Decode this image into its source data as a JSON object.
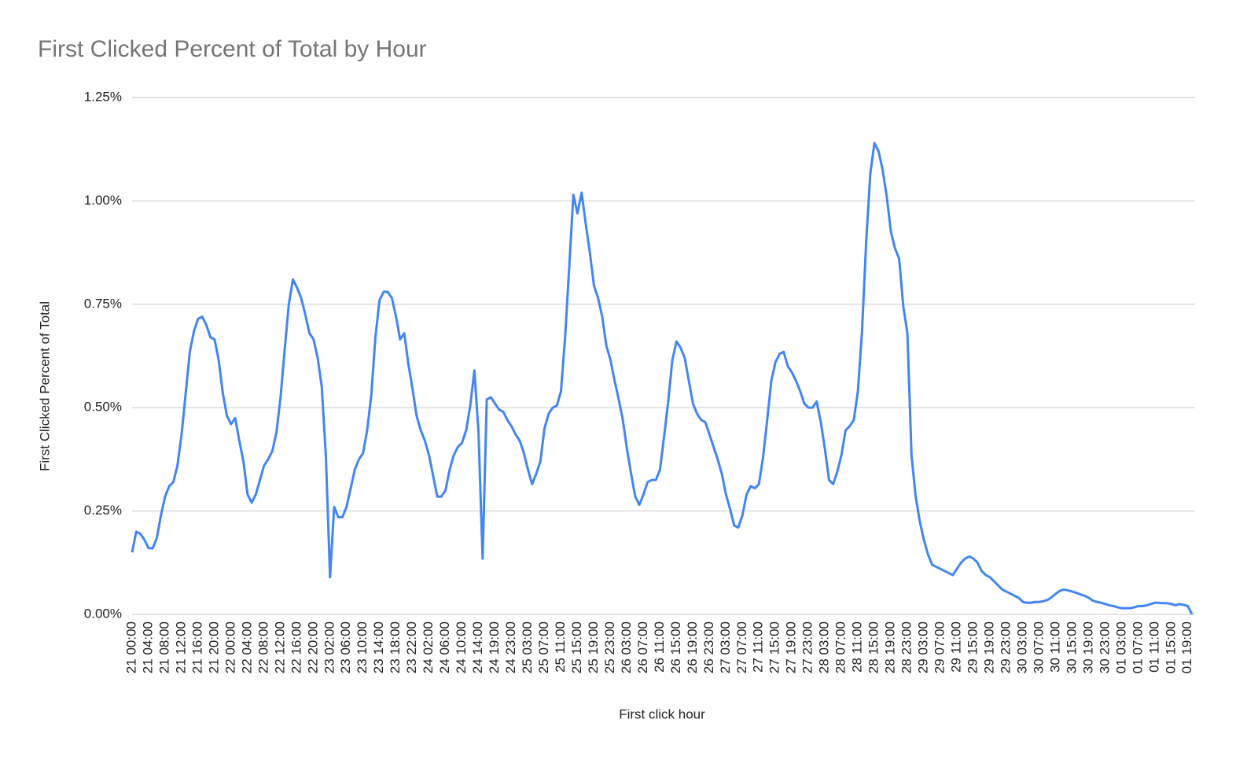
{
  "chart_data": {
    "type": "line",
    "title": "First Clicked Percent of Total by Hour",
    "x_label": "First click hour",
    "y_label": "First Clicked Percent of Total",
    "color": "#4285f4",
    "grid": true,
    "ylim": [
      0,
      1.25
    ],
    "yticks": [
      {
        "value": 0,
        "label": "0.00%"
      },
      {
        "value": 0.25,
        "label": "0.25%"
      },
      {
        "value": 0.5,
        "label": "0.50%"
      },
      {
        "value": 0.75,
        "label": "0.75%"
      },
      {
        "value": 1,
        "label": "1.00%"
      },
      {
        "value": 1.25,
        "label": "1.25%"
      }
    ],
    "categories": [
      "21 00:00",
      null,
      null,
      null,
      "21 04:00",
      null,
      null,
      null,
      "21 08:00",
      null,
      null,
      null,
      "21 12:00",
      null,
      null,
      null,
      "21 16:00",
      null,
      null,
      null,
      "21 20:00",
      null,
      null,
      null,
      "22 00:00",
      null,
      null,
      null,
      "22 04:00",
      null,
      null,
      null,
      "22 08:00",
      null,
      null,
      null,
      "22 12:00",
      null,
      null,
      null,
      "22 16:00",
      null,
      null,
      null,
      "22 20:00",
      null,
      null,
      null,
      "23 02:00",
      null,
      null,
      null,
      "23 06:00",
      null,
      null,
      null,
      "23 10:00",
      null,
      null,
      null,
      "23 14:00",
      null,
      null,
      null,
      "23 18:00",
      null,
      null,
      null,
      "23 22:00",
      null,
      null,
      null,
      "24 02:00",
      null,
      null,
      null,
      "24 06:00",
      null,
      null,
      null,
      "24 10:00",
      null,
      null,
      null,
      "24 14:00",
      null,
      null,
      null,
      "24 19:00",
      null,
      null,
      null,
      "24 23:00",
      null,
      null,
      null,
      "25 03:00",
      null,
      null,
      null,
      "25 07:00",
      null,
      null,
      null,
      "25 11:00",
      null,
      null,
      null,
      "25 15:00",
      null,
      null,
      null,
      "25 19:00",
      null,
      null,
      null,
      "25 23:00",
      null,
      null,
      null,
      "26 03:00",
      null,
      null,
      null,
      "26 07:00",
      null,
      null,
      null,
      "26 11:00",
      null,
      null,
      null,
      "26 15:00",
      null,
      null,
      null,
      "26 19:00",
      null,
      null,
      null,
      "26 23:00",
      null,
      null,
      null,
      "27 03:00",
      null,
      null,
      null,
      "27 07:00",
      null,
      null,
      null,
      "27 11:00",
      null,
      null,
      null,
      "27 15:00",
      null,
      null,
      null,
      "27 19:00",
      null,
      null,
      null,
      "27 23:00",
      null,
      null,
      null,
      "28 03:00",
      null,
      null,
      null,
      "28 07:00",
      null,
      null,
      null,
      "28 11:00",
      null,
      null,
      null,
      "28 15:00",
      null,
      null,
      null,
      "28 19:00",
      null,
      null,
      null,
      "28 23:00",
      null,
      null,
      null,
      "29 03:00",
      null,
      null,
      null,
      "29 07:00",
      null,
      null,
      null,
      "29 11:00",
      null,
      null,
      null,
      "29 15:00",
      null,
      null,
      null,
      "29 19:00",
      null,
      null,
      null,
      "29 23:00",
      null,
      null,
      null,
      "30 03:00",
      null,
      null,
      null,
      "30 07:00",
      null,
      null,
      null,
      "30 11:00",
      null,
      null,
      null,
      "30 15:00",
      null,
      null,
      null,
      "30 19:00",
      null,
      null,
      null,
      "30 23:00",
      null,
      null,
      null,
      "01 03:00",
      null,
      null,
      null,
      "01 07:00",
      null,
      null,
      null,
      "01 11:00",
      null,
      null,
      null,
      "01 15:00",
      null,
      null,
      null,
      "01 19:00",
      null
    ],
    "values": [
      0.15,
      0.2,
      0.195,
      0.18,
      0.16,
      0.16,
      0.185,
      0.24,
      0.285,
      0.31,
      0.32,
      0.36,
      0.435,
      0.535,
      0.635,
      0.685,
      0.715,
      0.72,
      0.7,
      0.67,
      0.665,
      0.615,
      0.535,
      0.48,
      0.46,
      0.475,
      0.42,
      0.37,
      0.29,
      0.27,
      0.29,
      0.325,
      0.36,
      0.375,
      0.395,
      0.44,
      0.525,
      0.64,
      0.75,
      0.81,
      0.79,
      0.765,
      0.725,
      0.68,
      0.665,
      0.62,
      0.55,
      0.38,
      0.09,
      0.26,
      0.235,
      0.235,
      0.26,
      0.305,
      0.35,
      0.375,
      0.39,
      0.445,
      0.53,
      0.67,
      0.76,
      0.78,
      0.78,
      0.765,
      0.72,
      0.665,
      0.68,
      0.605,
      0.545,
      0.48,
      0.445,
      0.42,
      0.385,
      0.335,
      0.285,
      0.285,
      0.3,
      0.35,
      0.385,
      0.405,
      0.415,
      0.445,
      0.505,
      0.59,
      0.44,
      0.135,
      0.52,
      0.525,
      0.51,
      0.495,
      0.49,
      0.47,
      0.455,
      0.435,
      0.42,
      0.39,
      0.35,
      0.315,
      0.34,
      0.37,
      0.45,
      0.485,
      0.5,
      0.505,
      0.54,
      0.67,
      0.84,
      1.015,
      0.97,
      1.02,
      0.945,
      0.875,
      0.795,
      0.765,
      0.72,
      0.65,
      0.615,
      0.565,
      0.52,
      0.47,
      0.4,
      0.34,
      0.285,
      0.265,
      0.29,
      0.32,
      0.325,
      0.325,
      0.35,
      0.43,
      0.515,
      0.615,
      0.66,
      0.645,
      0.62,
      0.565,
      0.51,
      0.485,
      0.47,
      0.465,
      0.435,
      0.405,
      0.375,
      0.34,
      0.29,
      0.255,
      0.215,
      0.21,
      0.24,
      0.29,
      0.31,
      0.305,
      0.315,
      0.38,
      0.47,
      0.565,
      0.61,
      0.63,
      0.635,
      0.6,
      0.585,
      0.565,
      0.54,
      0.51,
      0.5,
      0.5,
      0.515,
      0.465,
      0.4,
      0.325,
      0.315,
      0.345,
      0.385,
      0.445,
      0.455,
      0.47,
      0.54,
      0.685,
      0.9,
      1.065,
      1.14,
      1.12,
      1.075,
      1.01,
      0.925,
      0.885,
      0.86,
      0.745,
      0.68,
      0.385,
      0.285,
      0.225,
      0.18,
      0.145,
      0.12,
      0.115,
      0.11,
      0.105,
      0.1,
      0.095,
      0.11,
      0.125,
      0.135,
      0.14,
      0.135,
      0.125,
      0.105,
      0.095,
      0.09,
      0.08,
      0.07,
      0.06,
      0.055,
      0.05,
      0.045,
      0.04,
      0.03,
      0.028,
      0.028,
      0.03,
      0.03,
      0.032,
      0.035,
      0.042,
      0.05,
      0.057,
      0.06,
      0.058,
      0.055,
      0.052,
      0.048,
      0.045,
      0.04,
      0.033,
      0.03,
      0.028,
      0.025,
      0.022,
      0.02,
      0.017,
      0.015,
      0.015,
      0.015,
      0.017,
      0.02,
      0.02,
      0.022,
      0.025,
      0.028,
      0.028,
      0.027,
      0.027,
      0.025,
      0.022,
      0.025,
      0.023,
      0.02,
      0
    ]
  }
}
